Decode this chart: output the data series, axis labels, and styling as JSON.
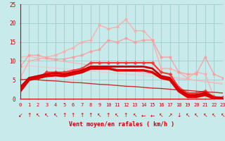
{
  "xlabel": "Vent moyen/en rafales ( km/h )",
  "xlim": [
    0,
    23
  ],
  "ylim": [
    0,
    25
  ],
  "xticks": [
    0,
    1,
    2,
    3,
    4,
    5,
    6,
    7,
    8,
    9,
    10,
    11,
    12,
    13,
    14,
    15,
    16,
    17,
    18,
    19,
    20,
    21,
    22,
    23
  ],
  "yticks": [
    0,
    5,
    10,
    15,
    20,
    25
  ],
  "bg_color": "#c8eaea",
  "grid_color": "#a0cccc",
  "series": [
    {
      "y": [
        11.0,
        11.2,
        10.8,
        10.5,
        10.2,
        9.8,
        9.5,
        9.2,
        8.8,
        8.5,
        8.2,
        7.8,
        7.5,
        7.2,
        6.8,
        6.5,
        6.2,
        5.8,
        5.5,
        5.2,
        4.8,
        4.5,
        4.2,
        3.8
      ],
      "color": "#ffaaaa",
      "lw": 1.0,
      "alpha": 0.7,
      "marker": null,
      "ms": 0
    },
    {
      "y": [
        8.5,
        8.7,
        8.5,
        8.3,
        8.1,
        7.9,
        7.7,
        7.5,
        7.3,
        7.1,
        6.9,
        6.7,
        6.5,
        6.3,
        6.1,
        5.9,
        5.7,
        5.5,
        5.3,
        5.1,
        4.8,
        4.6,
        4.4,
        4.2
      ],
      "color": "#ffbbbb",
      "lw": 1.0,
      "alpha": 0.6,
      "marker": null,
      "ms": 0
    },
    {
      "y": [
        5.5,
        10.0,
        10.5,
        11.0,
        11.5,
        12.5,
        13.5,
        15.0,
        15.5,
        19.5,
        18.5,
        19.0,
        21.0,
        18.0,
        18.0,
        15.5,
        8.0,
        8.0,
        7.0,
        5.5,
        7.0,
        6.5,
        0.5,
        0.5
      ],
      "color": "#ffaaaa",
      "lw": 1.0,
      "alpha": 0.9,
      "marker": "o",
      "ms": 2.5
    },
    {
      "y": [
        8.5,
        11.5,
        11.5,
        10.8,
        10.5,
        10.5,
        11.0,
        11.5,
        12.5,
        13.0,
        15.5,
        15.0,
        16.0,
        15.0,
        15.5,
        15.5,
        11.0,
        11.0,
        7.0,
        6.5,
        6.5,
        11.0,
        6.5,
        5.5
      ],
      "color": "#ff9999",
      "lw": 1.0,
      "alpha": 0.85,
      "marker": "o",
      "ms": 2.5
    },
    {
      "y": [
        2.5,
        5.5,
        5.5,
        7.0,
        7.0,
        7.0,
        7.5,
        8.0,
        9.5,
        9.5,
        9.5,
        9.5,
        9.5,
        9.5,
        9.5,
        9.5,
        7.0,
        6.5,
        3.0,
        1.5,
        1.5,
        2.0,
        0.5,
        0.3
      ],
      "color": "#ff3333",
      "lw": 1.5,
      "alpha": 1.0,
      "marker": "D",
      "ms": 2.5
    },
    {
      "y": [
        3.0,
        5.5,
        6.0,
        6.5,
        6.8,
        6.5,
        7.0,
        7.5,
        8.5,
        8.5,
        8.5,
        8.5,
        8.5,
        8.5,
        8.5,
        8.0,
        6.0,
        5.5,
        2.5,
        1.0,
        1.0,
        1.5,
        0.3,
        0.2
      ],
      "color": "#cc0000",
      "lw": 2.0,
      "alpha": 1.0,
      "marker": null,
      "ms": 0
    },
    {
      "y": [
        2.0,
        5.0,
        5.5,
        6.0,
        6.2,
        6.0,
        6.5,
        7.0,
        8.0,
        8.0,
        8.0,
        7.5,
        7.5,
        7.5,
        7.5,
        7.0,
        5.5,
        5.0,
        2.0,
        0.5,
        0.5,
        1.0,
        0.1,
        0.1
      ],
      "color": "#dd0000",
      "lw": 2.5,
      "alpha": 1.0,
      "marker": null,
      "ms": 0
    },
    {
      "y": [
        5.0,
        5.2,
        5.0,
        4.8,
        4.7,
        4.5,
        4.3,
        4.2,
        4.0,
        3.8,
        3.7,
        3.5,
        3.3,
        3.2,
        3.0,
        2.8,
        2.7,
        2.5,
        2.3,
        2.2,
        2.0,
        1.8,
        1.7,
        1.5
      ],
      "color": "#cc0000",
      "lw": 1.0,
      "alpha": 0.8,
      "marker": null,
      "ms": 0
    }
  ],
  "wind_arrows": [
    "↙",
    "↑",
    "↖",
    "↖",
    "↖",
    "↑",
    "↑",
    "↑",
    "↑",
    "↖",
    "↑",
    "↖",
    "↑",
    "↖",
    "←",
    "←",
    "↖",
    "↗",
    "↓",
    "↖",
    "↖",
    "↖",
    "↖",
    "↖"
  ]
}
